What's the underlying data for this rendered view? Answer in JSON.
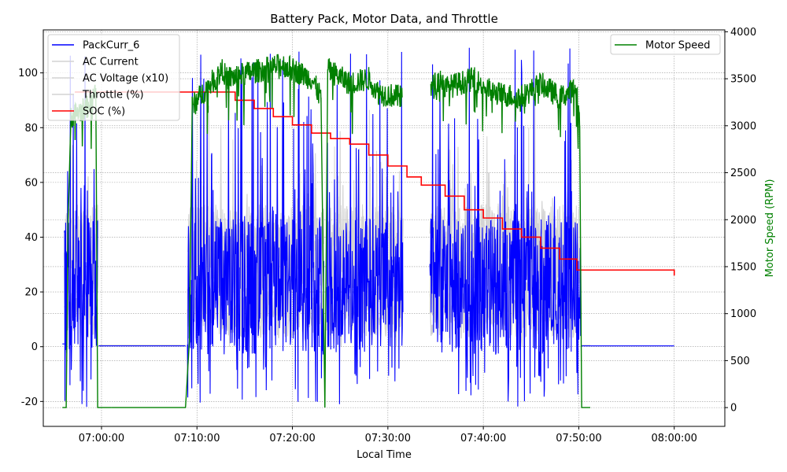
{
  "chart_data": {
    "type": "line",
    "title": "Battery Pack, Motor Data, and Throttle",
    "xlabel": "Local Time",
    "ylabel_left": "",
    "ylabel_right": "Motor Speed (RPM)",
    "x_range_min": [
      54.0,
      61.0
    ],
    "ylim_left": [
      -29.1,
      115.7
    ],
    "ylim_right": [
      -200,
      4020
    ],
    "grid": true,
    "x_ticks": [
      {
        "value": 60,
        "label": "07:00:00"
      },
      {
        "value": 70,
        "label": "07:10:00"
      },
      {
        "value": 80,
        "label": "07:20:00"
      },
      {
        "value": 90,
        "label": "07:30:00"
      },
      {
        "value": 100,
        "label": "07:40:00"
      },
      {
        "value": 110,
        "label": "07:50:00"
      },
      {
        "value": 120,
        "label": "08:00:00"
      }
    ],
    "x_range": [
      53.9,
      125.3
    ],
    "y_ticks_left": [
      -20,
      0,
      20,
      40,
      60,
      80,
      100
    ],
    "y_ticks_right": [
      0,
      500,
      1000,
      1500,
      2000,
      2500,
      3000,
      3500,
      4000
    ],
    "legend_left": [
      {
        "label": "PackCurr_6",
        "color": "#0000ff"
      },
      {
        "label": "AC Current",
        "color": "#d3d3d3"
      },
      {
        "label": "AC Voltage (x10)",
        "color": "#d3d3d3"
      },
      {
        "label": "Throttle (%)",
        "color": "#d3d3d3"
      },
      {
        "label": "SOC (%)",
        "color": "#ff0000"
      }
    ],
    "legend_right": [
      {
        "label": "Motor Speed",
        "color": "#008000"
      }
    ],
    "legend_left_placement": "upper-left",
    "legend_right_placement": "upper-right",
    "series": [
      {
        "name": "SOC (%)",
        "axis": "left",
        "color": "#ff0000",
        "x": [
          57.2,
          72.0,
          74.0,
          76.0,
          78.0,
          80.0,
          82.0,
          84.0,
          86.0,
          88.0,
          90.0,
          92.0,
          93.5,
          96.0,
          98.0,
          100.0,
          102.0,
          104.0,
          106.0,
          108.0,
          109.8,
          120.0
        ],
        "y": [
          93,
          93,
          90,
          87,
          84,
          81,
          78,
          76,
          74,
          70,
          66,
          62,
          59,
          55,
          50,
          47,
          43,
          40,
          36,
          32,
          28,
          26
        ]
      },
      {
        "name": "Motor Speed",
        "axis": "right",
        "color": "#008000",
        "segments": [
          {
            "shape": [
              [
                55.9,
                0
              ],
              [
                56.3,
                0
              ],
              [
                56.5,
                2000
              ],
              [
                56.8,
                3100
              ],
              [
                58.5,
                3200
              ],
              [
                59.0,
                3300
              ],
              [
                59.4,
                3400
              ],
              [
                59.6,
                0
              ],
              [
                61.0,
                0
              ]
            ]
          },
          {
            "shape": [
              [
                61.0,
                0
              ],
              [
                68.8,
                0
              ],
              [
                69.2,
                700
              ],
              [
                69.5,
                3200
              ],
              [
                71.0,
                3400
              ],
              [
                72.8,
                3600
              ],
              [
                73.0,
                3500
              ],
              [
                79.0,
                3650
              ],
              [
                82.0,
                3500
              ],
              [
                83.0,
                3300
              ],
              [
                83.4,
                0
              ],
              [
                83.7,
                3600
              ],
              [
                86.0,
                3450
              ],
              [
                88.0,
                3500
              ],
              [
                89.0,
                3350
              ],
              [
                91.5,
                3300
              ]
            ]
          },
          {
            "shape": [
              [
                94.5,
                3400
              ],
              [
                95.5,
                3500
              ],
              [
                96.0,
                3400
              ],
              [
                99.0,
                3500
              ],
              [
                101.0,
                3350
              ],
              [
                104.0,
                3300
              ],
              [
                106.0,
                3450
              ],
              [
                108.0,
                3300
              ],
              [
                109.8,
                3400
              ],
              [
                110.1,
                3000
              ],
              [
                110.3,
                0
              ],
              [
                111.2,
                0
              ]
            ]
          }
        ]
      }
    ],
    "notes": "PackCurr_6 (blue) fluctuates roughly between -20 and 110 A while driving; AC Current / AC Voltage (x10) / Throttle (%) (light grey) fluctuate 0-90; all near 0 while parked (~07:00-07:08) and after 07:51."
  }
}
